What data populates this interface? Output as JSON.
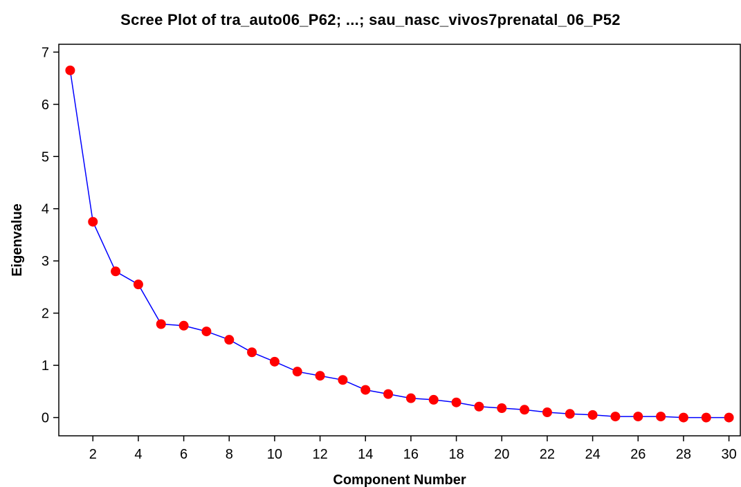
{
  "chart_data": {
    "type": "line",
    "title": "Scree Plot of tra_auto06_P62; ...; sau_nasc_vivos7prenatal_06_P52",
    "xlabel": "Component Number",
    "ylabel": "Eigenvalue",
    "xlim": [
      0.5,
      30.5
    ],
    "ylim": [
      -0.35,
      7.15
    ],
    "xticks": [
      2,
      4,
      6,
      8,
      10,
      12,
      14,
      16,
      18,
      20,
      22,
      24,
      26,
      28,
      30
    ],
    "yticks": [
      0,
      1,
      2,
      3,
      4,
      5,
      6,
      7
    ],
    "grid": false,
    "line_color": "#0000ff",
    "marker_color": "#ff0000",
    "x": [
      1,
      2,
      3,
      4,
      5,
      6,
      7,
      8,
      9,
      10,
      11,
      12,
      13,
      14,
      15,
      16,
      17,
      18,
      19,
      20,
      21,
      22,
      23,
      24,
      25,
      26,
      27,
      28,
      29,
      30
    ],
    "values": [
      6.65,
      3.75,
      2.8,
      2.55,
      1.79,
      1.76,
      1.65,
      1.49,
      1.25,
      1.07,
      0.88,
      0.8,
      0.72,
      0.53,
      0.45,
      0.37,
      0.34,
      0.29,
      0.21,
      0.18,
      0.15,
      0.1,
      0.07,
      0.05,
      0.02,
      0.02,
      0.02,
      0.0,
      0.0,
      0.0
    ]
  }
}
